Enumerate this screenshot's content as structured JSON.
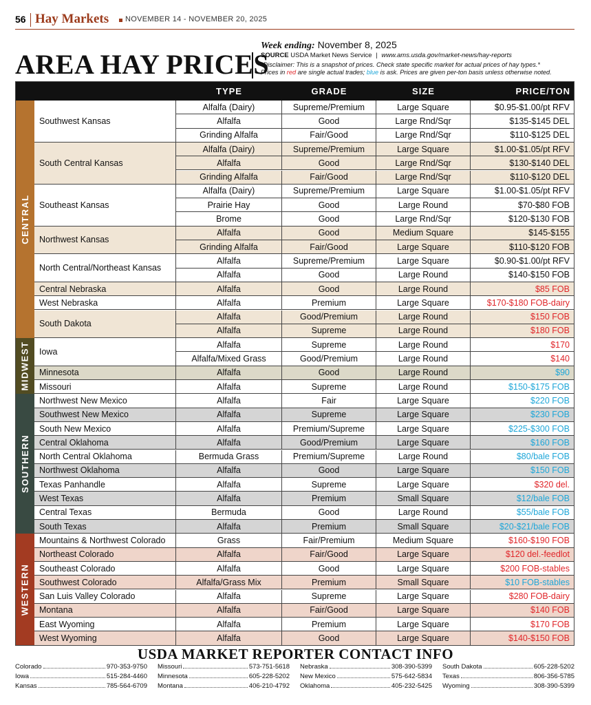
{
  "header": {
    "page": "56",
    "section": "Hay Markets",
    "dates": "NOVEMBER 14 - NOVEMBER 20, 2025"
  },
  "title": "AREA HAY PRICES",
  "week_label": "Week ending:",
  "week_date": "November  8, 2025",
  "source_label": "SOURCE",
  "source": "USDA Market News Service",
  "source_url": "www.ams.usda.gov/market-news/hay-reports",
  "disclaimer": "*Disclaimer: This is a snapshot of prices. Check state specific market for actual prices of hay types.*",
  "note": {
    "pre": "Prices in ",
    "red": "red",
    "mid": " are single actual trades; ",
    "blue": "blue",
    "post": " is ask. Prices are given per-ton basis unless otherwise noted."
  },
  "table": {
    "columns": [
      "TYPE",
      "GRADE",
      "SIZE",
      "PRICE/TON"
    ],
    "regions": [
      {
        "name": "CENTRAL",
        "color": "#b5732f",
        "shade": "#f0e5d5",
        "groups": [
          {
            "area": "Southwest Kansas",
            "rows": [
              [
                "Alfalfa (Dairy)",
                "Supreme/Premium",
                "Large Square",
                "$0.95-$1.00/pt RFV",
                "#111111"
              ],
              [
                "Alfalfa",
                "Good",
                "Large Rnd/Sqr",
                "$135-$145 DEL",
                "#111111"
              ],
              [
                "Grinding Alfalfa",
                "Fair/Good",
                "Large Rnd/Sqr",
                "$110-$125 DEL",
                "#111111"
              ]
            ]
          },
          {
            "area": "South Central Kansas",
            "rows": [
              [
                "Alfalfa (Dairy)",
                "Supreme/Premium",
                "Large Square",
                "$1.00-$1.05/pt RFV",
                "#111111"
              ],
              [
                "Alfalfa",
                "Good",
                "Large Rnd/Sqr",
                "$130-$140 DEL",
                "#111111"
              ],
              [
                "Grinding Alfalfa",
                "Fair/Good",
                "Large Rnd/Sqr",
                "$110-$120 DEL",
                "#111111"
              ]
            ]
          },
          {
            "area": "Southeast Kansas",
            "rows": [
              [
                "Alfalfa (Dairy)",
                "Supreme/Premium",
                "Large Square",
                "$1.00-$1.05/pt RFV",
                "#111111"
              ],
              [
                "Prairie Hay",
                "Good",
                "Large Round",
                "$70-$80 FOB",
                "#111111"
              ],
              [
                "Brome",
                "Good",
                "Large Rnd/Sqr",
                "$120-$130 FOB",
                "#111111"
              ]
            ]
          },
          {
            "area": "Northwest Kansas",
            "rows": [
              [
                "Alfalfa",
                "Good",
                "Medium Square",
                "$145-$155",
                "#111111"
              ],
              [
                "Grinding Alfalfa",
                "Fair/Good",
                "Large Square",
                "$110-$120 FOB",
                "#111111"
              ]
            ]
          },
          {
            "area": "North Central/Northeast Kansas",
            "rows": [
              [
                "Alfalfa",
                "Supreme/Premium",
                "Large Square",
                "$0.90-$1.00/pt RFV",
                "#111111"
              ],
              [
                "Alfalfa",
                "Good",
                "Large Round",
                "$140-$150 FOB",
                "#111111"
              ]
            ]
          },
          {
            "area": "Central Nebraska",
            "rows": [
              [
                "Alfalfa",
                "Good",
                "Large Round",
                "$85 FOB",
                "#e0262a"
              ]
            ]
          },
          {
            "area": "West Nebraska",
            "rows": [
              [
                "Alfalfa",
                "Premium",
                "Large Square",
                "$170-$180 FOB-dairy",
                "#e0262a"
              ]
            ]
          },
          {
            "area": "South Dakota",
            "rows": [
              [
                "Alfalfa",
                "Good/Premium",
                "Large Round",
                "$150 FOB",
                "#e0262a"
              ],
              [
                "Alfalfa",
                "Supreme",
                "Large Round",
                "$180 FOB",
                "#e0262a"
              ]
            ]
          }
        ]
      },
      {
        "name": "MIDWEST",
        "color": "#524c22",
        "shade": "#dcd9c8",
        "groups": [
          {
            "area": "Iowa",
            "rows": [
              [
                "Alfalfa",
                "Supreme",
                "Large Round",
                "$170",
                "#e0262a"
              ],
              [
                "Alfalfa/Mixed Grass",
                "Good/Premium",
                "Large Round",
                "$140",
                "#e0262a"
              ]
            ]
          },
          {
            "area": "Minnesota",
            "rows": [
              [
                "Alfalfa",
                "Good",
                "Large Round",
                "$90",
                "#1ea6d8"
              ]
            ]
          },
          {
            "area": "Missouri",
            "rows": [
              [
                "Alfalfa",
                "Supreme",
                "Large Round",
                "$150-$175 FOB",
                "#1ea6d8"
              ]
            ]
          }
        ]
      },
      {
        "name": "SOUTHERN",
        "color": "#394a42",
        "shade": "#d5d5d5",
        "groups": [
          {
            "area": "Northwest New Mexico",
            "rows": [
              [
                "Alfalfa",
                "Fair",
                "Large Square",
                "$220 FOB",
                "#1ea6d8"
              ]
            ]
          },
          {
            "area": "Southwest New Mexico",
            "rows": [
              [
                "Alfalfa",
                "Supreme",
                "Large Square",
                "$230 FOB",
                "#1ea6d8"
              ]
            ]
          },
          {
            "area": "South New Mexico",
            "rows": [
              [
                "Alfalfa",
                "Premium/Supreme",
                "Large Square",
                "$225-$300 FOB",
                "#1ea6d8"
              ]
            ]
          },
          {
            "area": "Central Oklahoma",
            "rows": [
              [
                "Alfalfa",
                "Good/Premium",
                "Large Square",
                "$160 FOB",
                "#1ea6d8"
              ]
            ]
          },
          {
            "area": "North Central Oklahoma",
            "rows": [
              [
                "Bermuda Grass",
                "Premium/Supreme",
                "Large Round",
                "$80/bale FOB",
                "#1ea6d8"
              ]
            ]
          },
          {
            "area": "Northwest Oklahoma",
            "rows": [
              [
                "Alfalfa",
                "Good",
                "Large Square",
                "$150 FOB",
                "#1ea6d8"
              ]
            ]
          },
          {
            "area": "Texas Panhandle",
            "rows": [
              [
                "Alfalfa",
                "Supreme",
                "Large Square",
                "$320 del.",
                "#e0262a"
              ]
            ]
          },
          {
            "area": "West Texas",
            "rows": [
              [
                "Alfalfa",
                "Premium",
                "Small Square",
                "$12/bale FOB",
                "#1ea6d8"
              ]
            ]
          },
          {
            "area": "Central Texas",
            "rows": [
              [
                "Bermuda",
                "Good",
                "Large Round",
                "$55/bale FOB",
                "#1ea6d8"
              ]
            ]
          },
          {
            "area": "South Texas",
            "rows": [
              [
                "Alfalfa",
                "Premium",
                "Small Square",
                "$20-$21/bale FOB",
                "#1ea6d8"
              ]
            ]
          }
        ]
      },
      {
        "name": "WESTERN",
        "color": "#a33b22",
        "shade": "#efd5ca",
        "groups": [
          {
            "area": "Mountains & Northwest Colorado",
            "rows": [
              [
                "Grass",
                "Fair/Premium",
                "Medium Square",
                "$160-$190 FOB",
                "#e0262a"
              ]
            ]
          },
          {
            "area": "Northeast Colorado",
            "rows": [
              [
                "Alfalfa",
                "Fair/Good",
                "Large Square",
                "$120 del.-feedlot",
                "#e0262a"
              ]
            ]
          },
          {
            "area": "Southeast Colorado",
            "rows": [
              [
                "Alfalfa",
                "Good",
                "Large Square",
                "$200 FOB-stables",
                "#e0262a"
              ]
            ]
          },
          {
            "area": "Southwest Colorado",
            "rows": [
              [
                "Alfalfa/Grass Mix",
                "Premium",
                "Small Square",
                "$10 FOB-stables",
                "#1ea6d8"
              ]
            ]
          },
          {
            "area": "San Luis Valley Colorado",
            "rows": [
              [
                "Alfalfa",
                "Supreme",
                "Large Square",
                "$280 FOB-dairy",
                "#e0262a"
              ]
            ]
          },
          {
            "area": "Montana",
            "rows": [
              [
                "Alfalfa",
                "Fair/Good",
                "Large Square",
                "$140 FOB",
                "#e0262a"
              ]
            ]
          },
          {
            "area": "East Wyoming",
            "rows": [
              [
                "Alfalfa",
                "Premium",
                "Large Square",
                "$170 FOB",
                "#e0262a"
              ]
            ]
          },
          {
            "area": "West Wyoming",
            "rows": [
              [
                "Alfalfa",
                "Good",
                "Large Square",
                "$140-$150 FOB",
                "#e0262a"
              ]
            ]
          }
        ]
      }
    ]
  },
  "contacts": {
    "title": "USDA MARKET REPORTER CONTACT INFO",
    "columns": [
      [
        [
          "Colorado",
          "970-353-9750"
        ],
        [
          "Iowa",
          "515-284-4460"
        ],
        [
          "Kansas",
          "785-564-6709"
        ]
      ],
      [
        [
          "Missouri",
          "573-751-5618"
        ],
        [
          "Minnesota",
          "605-228-5202"
        ],
        [
          "Montana",
          "406-210-4792"
        ]
      ],
      [
        [
          "Nebraska",
          "308-390-5399"
        ],
        [
          "New Mexico",
          "575-642-5834"
        ],
        [
          "Oklahoma",
          "405-232-5425"
        ]
      ],
      [
        [
          "South Dakota",
          "605-228-5202"
        ],
        [
          "Texas",
          "806-356-5785"
        ],
        [
          "Wyoming",
          "308-390-5399"
        ]
      ]
    ]
  }
}
